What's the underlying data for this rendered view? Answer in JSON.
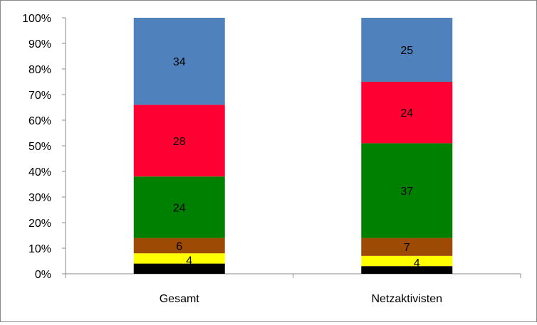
{
  "chart_data": {
    "type": "bar",
    "stacked": true,
    "percent_stacked": true,
    "categories": [
      "Gesamt",
      "Netzaktivisten"
    ],
    "series": [
      {
        "values": [
          4,
          3
        ],
        "labels": [
          "",
          ""
        ],
        "color": "#000000"
      },
      {
        "values": [
          4,
          4
        ],
        "labels": [
          "4",
          "4"
        ],
        "color": "#ffff00"
      },
      {
        "values": [
          6,
          7
        ],
        "labels": [
          "6",
          "7"
        ],
        "color": "#9c4a04"
      },
      {
        "values": [
          24,
          37
        ],
        "labels": [
          "24",
          "37"
        ],
        "color": "#008000"
      },
      {
        "values": [
          28,
          24
        ],
        "labels": [
          "28",
          "24"
        ],
        "color": "#ff0033"
      },
      {
        "values": [
          34,
          25
        ],
        "labels": [
          "34",
          "25"
        ],
        "color": "#4f81bd"
      }
    ],
    "ylim": [
      0,
      100
    ],
    "y_ticks": [
      "0%",
      "10%",
      "20%",
      "30%",
      "40%",
      "50%",
      "60%",
      "70%",
      "80%",
      "90%",
      "100%"
    ],
    "grid": false,
    "legend": "none",
    "title": "",
    "xlabel": "",
    "ylabel": ""
  }
}
